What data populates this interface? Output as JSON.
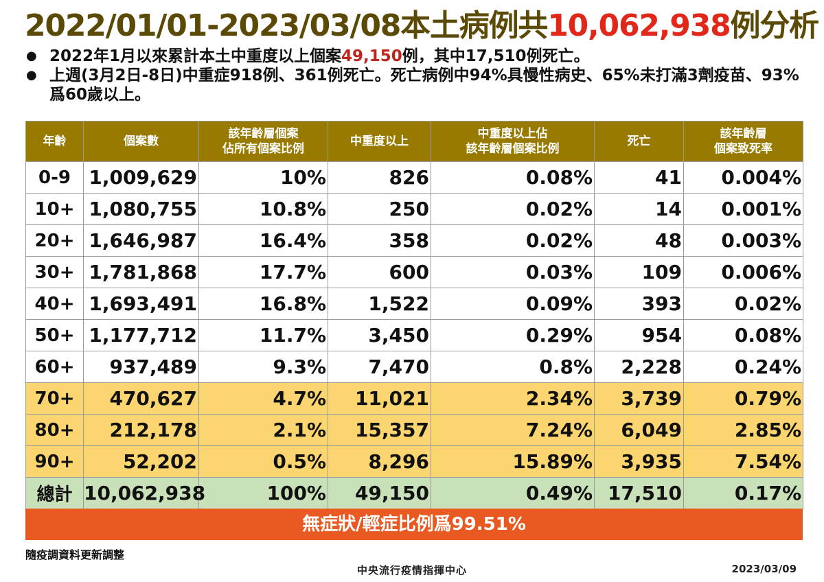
{
  "title": {
    "part1": "2022/01/01-2023/03/08本土病例共",
    "highlight": "10,062,938",
    "part2": "例分析"
  },
  "bullets": [
    {
      "pre": "2022年1月以來累計本土中重度以上個案",
      "red": "49,150",
      "post": "例，其中17,510例死亡。"
    },
    {
      "pre": "上週(3月2日-8日)中重症918例、361例死亡。死亡病例中94%具慢性病史、65%未打滿3劑疫苗、93%爲60歲以上。",
      "red": "",
      "post": ""
    }
  ],
  "table": {
    "headers": [
      "年齡",
      "個案數",
      "該年齡層個案\n佔所有個案比例",
      "中重度以上",
      "中重度以上佔\n該年齡層個案比例",
      "死亡",
      "該年齡層\n個案致死率"
    ],
    "rows": [
      [
        "0-9",
        "1,009,629",
        "10%",
        "826",
        "0.08%",
        "41",
        "0.004%"
      ],
      [
        "10+",
        "1,080,755",
        "10.8%",
        "250",
        "0.02%",
        "14",
        "0.001%"
      ],
      [
        "20+",
        "1,646,987",
        "16.4%",
        "358",
        "0.02%",
        "48",
        "0.003%"
      ],
      [
        "30+",
        "1,781,868",
        "17.7%",
        "600",
        "0.03%",
        "109",
        "0.006%"
      ],
      [
        "40+",
        "1,693,491",
        "16.8%",
        "1,522",
        "0.09%",
        "393",
        "0.02%"
      ],
      [
        "50+",
        "1,177,712",
        "11.7%",
        "3,450",
        "0.29%",
        "954",
        "0.08%"
      ],
      [
        "60+",
        "937,489",
        "9.3%",
        "7,470",
        "0.8%",
        "2,228",
        "0.24%"
      ],
      [
        "70+",
        "470,627",
        "4.7%",
        "11,021",
        "2.34%",
        "3,739",
        "0.79%"
      ],
      [
        "80+",
        "212,178",
        "2.1%",
        "15,357",
        "7.24%",
        "6,049",
        "2.85%"
      ],
      [
        "90+",
        "52,202",
        "0.5%",
        "8,296",
        "15.89%",
        "3,935",
        "7.54%"
      ],
      [
        "總計",
        "10,062,938",
        "100%",
        "49,150",
        "0.49%",
        "17,510",
        "0.17%"
      ]
    ]
  },
  "banner": "無症狀/輕症比例爲99.51%",
  "note": "隨疫調資料更新調整",
  "footer": {
    "org": "中央流行疫情指揮中心",
    "date": "2023/03/09"
  },
  "colors": {
    "title": "#5a4a05",
    "highlight_red": "#e0271a",
    "header_bg": "#987a00",
    "row_yellow": "#fbd56f",
    "row_green": "#c8e1b8",
    "banner_bg": "#e85a22"
  }
}
